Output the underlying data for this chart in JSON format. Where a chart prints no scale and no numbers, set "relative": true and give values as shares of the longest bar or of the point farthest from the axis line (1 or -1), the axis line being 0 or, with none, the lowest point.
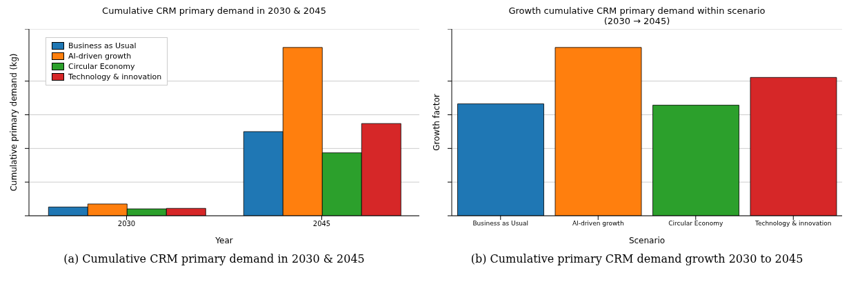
{
  "chart_data": [
    {
      "type": "bar",
      "title": "Cumulative CRM primary demand in 2030 & 2045",
      "xlabel": "Year",
      "ylabel": "Cumulative primary demand (kg)",
      "categories": [
        "2030",
        "2045"
      ],
      "relative": true,
      "grid": "y",
      "legend": "top left",
      "series": [
        {
          "name": "Business as Usual",
          "color": "#1f77b4",
          "values": [
            0.052,
            0.5
          ]
        },
        {
          "name": "AI-driven growth",
          "color": "#ff7f0e",
          "values": [
            0.07,
            1
          ]
        },
        {
          "name": "Circular Economy",
          "color": "#2ca02c",
          "values": [
            0.041,
            0.374
          ]
        },
        {
          "name": "Technology & innovation",
          "color": "#d62728",
          "values": [
            0.044,
            0.548
          ]
        }
      ],
      "annotations": [
        "(a) Cumulative CRM primary demand in 2030 & 2045"
      ]
    },
    {
      "type": "bar",
      "title": "Growth cumulative CRM primary demand within scenario\n(2030 → 2045)",
      "xlabel": "Scenario",
      "ylabel": "Growth factor",
      "categories": [
        "Business as Usual",
        "AI-driven growth",
        "Circular Economy",
        "Technology & innovation"
      ],
      "relative": true,
      "grid": "y",
      "values": [
        0.665,
        1,
        0.657,
        0.822
      ],
      "colors": [
        "#1f77b4",
        "#ff7f0e",
        "#2ca02c",
        "#d62728"
      ],
      "annotations": [
        "(b) Cumulative primary CRM demand growth 2030 to 2045"
      ]
    }
  ]
}
